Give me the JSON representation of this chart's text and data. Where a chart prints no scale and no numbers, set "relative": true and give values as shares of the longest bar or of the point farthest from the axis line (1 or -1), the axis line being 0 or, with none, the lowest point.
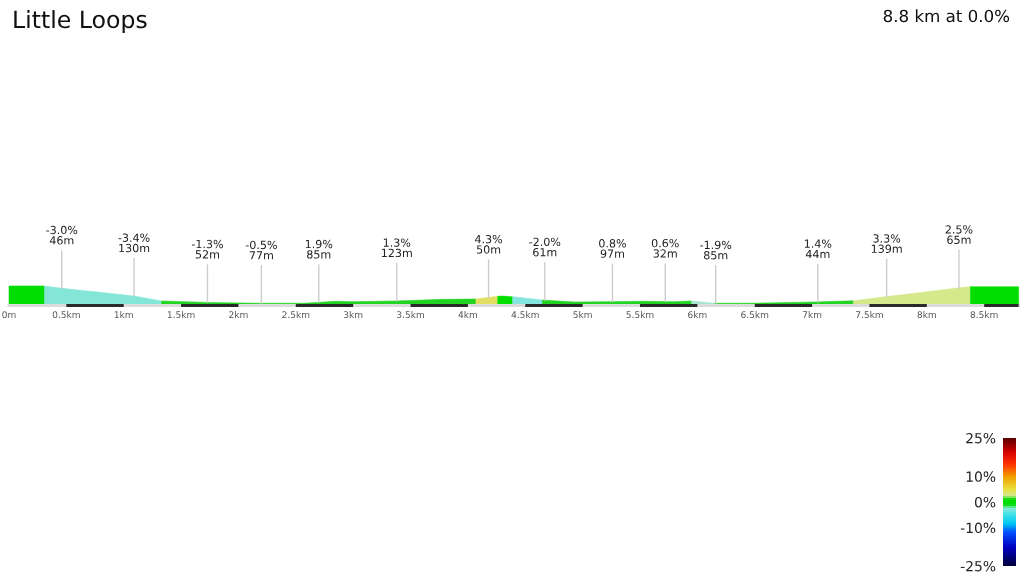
{
  "chart_data": {
    "type": "area",
    "title": "Little Loops",
    "subtitle": "8.8 km at 0.0%",
    "relative": true,
    "series": [
      {
        "color": "#00dd00",
        "x": [
          0.0,
          0.31
        ],
        "values": [
          1.0,
          1.0
        ]
      },
      {
        "color": "#84e6d6",
        "x": [
          0.31,
          0.46,
          0.75,
          1.09,
          1.33
        ],
        "values": [
          1.0,
          0.87,
          0.68,
          0.44,
          0.17
        ]
      },
      {
        "color": "#22d422",
        "x": [
          1.33,
          1.73,
          2.19,
          2.57,
          2.85,
          3.0,
          3.37,
          3.78,
          4.07
        ],
        "values": [
          0.17,
          0.09,
          0.04,
          0.04,
          0.15,
          0.13,
          0.17,
          0.26,
          0.28
        ]
      },
      {
        "color": "#e2e064",
        "x": [
          4.07,
          4.19,
          4.26
        ],
        "values": [
          0.28,
          0.37,
          0.43
        ]
      },
      {
        "color": "#00dd00",
        "x": [
          4.26,
          4.3,
          4.39
        ],
        "values": [
          0.43,
          0.44,
          0.4
        ]
      },
      {
        "color": "#84e4e0",
        "x": [
          4.39,
          4.65
        ],
        "values": [
          0.4,
          0.22
        ]
      },
      {
        "color": "#22d422",
        "x": [
          4.65,
          4.93,
          5.23,
          5.52,
          5.8,
          5.95
        ],
        "values": [
          0.22,
          0.11,
          0.13,
          0.15,
          0.13,
          0.17
        ]
      },
      {
        "color": "#a6e6cc",
        "x": [
          5.95,
          6.15
        ],
        "values": [
          0.17,
          0.04
        ]
      },
      {
        "color": "#22d422",
        "x": [
          6.15,
          6.44,
          7.02,
          7.36
        ],
        "values": [
          0.04,
          0.04,
          0.11,
          0.18
        ]
      },
      {
        "color": "#d6e88c",
        "x": [
          7.36,
          7.6,
          7.88,
          8.32,
          8.38
        ],
        "values": [
          0.18,
          0.37,
          0.59,
          0.93,
          0.96
        ]
      },
      {
        "color": "#00dd00",
        "x": [
          8.38,
          8.8
        ],
        "values": [
          0.96,
          0.96
        ]
      }
    ],
    "clim": [
      -25,
      25
    ],
    "cticks": [
      {
        "value": 25,
        "label": "25%"
      },
      {
        "value": 10,
        "label": "10%"
      },
      {
        "value": 0,
        "label": "0%"
      },
      {
        "value": -10,
        "label": "-10%"
      },
      {
        "value": -25,
        "label": "-25%"
      }
    ],
    "xlim": [
      0,
      8.8
    ],
    "xticks": [
      {
        "value": 0,
        "label": "0m"
      },
      {
        "value": 0.5,
        "label": "0.5km"
      },
      {
        "value": 1,
        "label": "1km"
      },
      {
        "value": 1.5,
        "label": "1.5km"
      },
      {
        "value": 2,
        "label": "2km"
      },
      {
        "value": 2.5,
        "label": "2.5km"
      },
      {
        "value": 3,
        "label": "3km"
      },
      {
        "value": 3.5,
        "label": "3.5km"
      },
      {
        "value": 4,
        "label": "4km"
      },
      {
        "value": 4.5,
        "label": "4.5km"
      },
      {
        "value": 5,
        "label": "5km"
      },
      {
        "value": 5.5,
        "label": "5.5km"
      },
      {
        "value": 6,
        "label": "6km"
      },
      {
        "value": 6.5,
        "label": "6.5km"
      },
      {
        "value": 7,
        "label": "7km"
      },
      {
        "value": 7.5,
        "label": "7.5km"
      },
      {
        "value": 8,
        "label": "8km"
      },
      {
        "value": 8.5,
        "label": "8.5km"
      }
    ],
    "annotations": [
      {
        "text": "-3.0%\n46m",
        "x": 0.46,
        "y": 0.87
      },
      {
        "text": "-3.4%\n130m",
        "x": 1.09,
        "y": 0.44
      },
      {
        "text": "-1.3%\n52m",
        "x": 1.73,
        "y": 0.09
      },
      {
        "text": "-0.5%\n77m",
        "x": 2.2,
        "y": 0.04
      },
      {
        "text": "1.9%\n85m",
        "x": 2.7,
        "y": 0.09
      },
      {
        "text": "1.3%\n123m",
        "x": 3.38,
        "y": 0.17
      },
      {
        "text": "4.3%\n50m",
        "x": 4.18,
        "y": 0.36
      },
      {
        "text": "-2.0%\n61m",
        "x": 4.67,
        "y": 0.21
      },
      {
        "text": "0.8%\n97m",
        "x": 5.26,
        "y": 0.13
      },
      {
        "text": "0.6%\n32m",
        "x": 5.72,
        "y": 0.14
      },
      {
        "text": "-1.9%\n85m",
        "x": 6.16,
        "y": 0.04
      },
      {
        "text": "1.4%\n44m",
        "x": 7.05,
        "y": 0.11
      },
      {
        "text": "3.3%\n139m",
        "x": 7.65,
        "y": 0.4
      },
      {
        "text": "2.5%\n65m",
        "x": 8.28,
        "y": 0.9
      }
    ],
    "grid": false
  }
}
